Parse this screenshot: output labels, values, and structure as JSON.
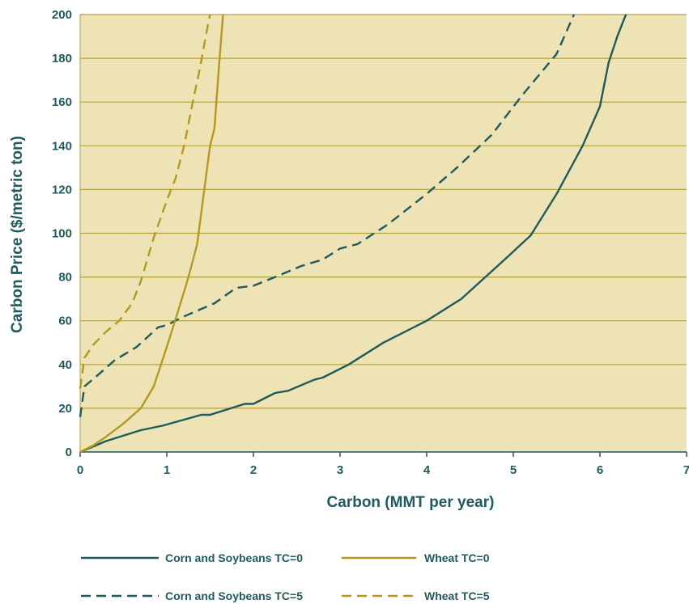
{
  "colors": {
    "plot_background": "#ede3b5",
    "gridline": "#b5a23c",
    "corn_soybeans": "#1f5a5c",
    "wheat": "#b39a1e",
    "text": "#1f5a5c"
  },
  "chart_data": {
    "type": "line",
    "xlabel": "Carbon (MMT per year)",
    "ylabel": "Carbon Price ($/metric ton)",
    "xlim": [
      0,
      7
    ],
    "ylim": [
      0,
      200
    ],
    "x_ticks": [
      "0",
      "1",
      "2",
      "3",
      "4",
      "5",
      "6",
      "7"
    ],
    "y_ticks": [
      "0",
      "20",
      "40",
      "60",
      "80",
      "100",
      "120",
      "140",
      "160",
      "180",
      "200"
    ],
    "grid": "horizontal",
    "legend_position": "bottom",
    "series": [
      {
        "name": "Corn and Soybeans TC=0",
        "color": "#1f5a5c",
        "style": "solid",
        "x": [
          0,
          0.3,
          0.7,
          0.95,
          1.4,
          1.5,
          1.9,
          2.0,
          2.25,
          2.4,
          2.7,
          2.8,
          3.1,
          3.5,
          4.0,
          4.4,
          4.9,
          5.2,
          5.5,
          5.8,
          6.0,
          6.1,
          6.2,
          6.3
        ],
        "y": [
          0,
          5,
          10,
          12,
          17,
          17,
          22,
          22,
          27,
          28,
          33,
          34,
          40,
          50,
          60,
          70,
          88,
          99,
          118,
          140,
          158,
          178,
          190,
          200
        ]
      },
      {
        "name": "Corn and Soybeans TC=5",
        "color": "#1f5a5c",
        "style": "dashed",
        "x": [
          0,
          0.05,
          0.2,
          0.4,
          0.65,
          0.9,
          1.0,
          1.2,
          1.55,
          1.8,
          2.0,
          2.25,
          2.55,
          2.8,
          3.0,
          3.2,
          3.55,
          4.0,
          4.35,
          4.75,
          5.1,
          5.5,
          5.7
        ],
        "y": [
          16,
          30,
          35,
          42,
          48,
          57,
          58,
          62,
          68,
          75,
          76,
          80,
          85,
          88,
          93,
          95,
          104,
          118,
          130,
          145,
          163,
          182,
          200
        ]
      },
      {
        "name": "Wheat TC=0",
        "color": "#b39a1e",
        "style": "solid",
        "x": [
          0,
          0.15,
          0.3,
          0.5,
          0.7,
          0.85,
          1.0,
          1.15,
          1.25,
          1.35,
          1.45,
          1.5,
          1.55,
          1.6,
          1.65
        ],
        "y": [
          0,
          3,
          7,
          13,
          20,
          30,
          48,
          67,
          80,
          95,
          125,
          140,
          148,
          175,
          200
        ]
      },
      {
        "name": "Wheat TC=5",
        "color": "#b39a1e",
        "style": "dashed",
        "x": [
          0,
          0.05,
          0.15,
          0.3,
          0.45,
          0.6,
          0.7,
          0.85,
          1.0,
          1.1,
          1.2,
          1.3,
          1.38,
          1.45,
          1.5
        ],
        "y": [
          29,
          43,
          49,
          55,
          60,
          68,
          78,
          98,
          115,
          125,
          140,
          160,
          175,
          190,
          200
        ]
      }
    ]
  }
}
